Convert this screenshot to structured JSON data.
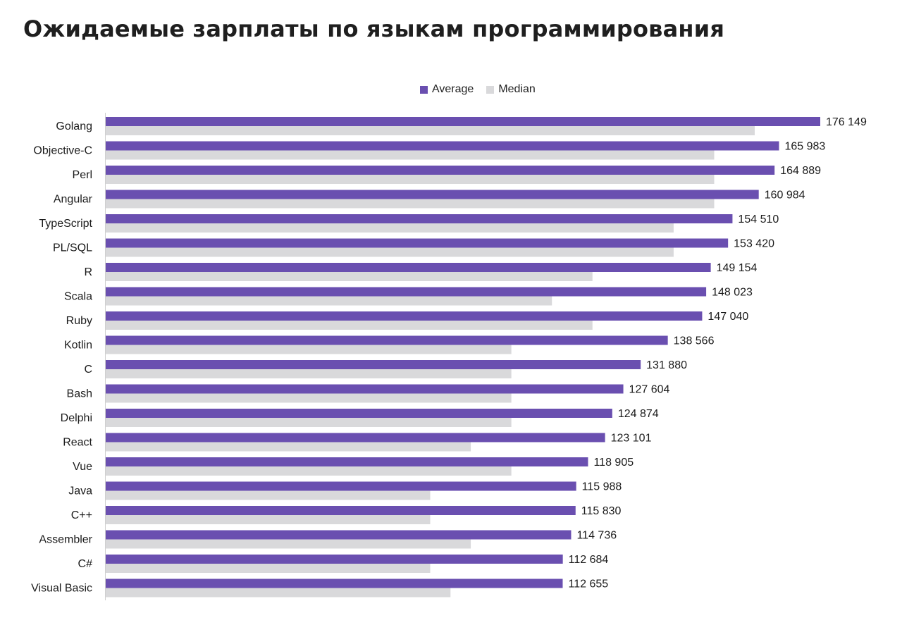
{
  "title": "Ожидаемые зарплаты по языкам программирования",
  "colors": {
    "average": "#6a4fb0",
    "median": "#d9d9db",
    "axis": "#cfcfcf"
  },
  "chart_data": {
    "type": "bar",
    "orientation": "horizontal",
    "title": "Ожидаемые зарплаты по языкам программирования",
    "xlabel": "",
    "ylabel": "",
    "legend_position": "top-center",
    "grid": false,
    "xlim": [
      0,
      180000
    ],
    "categories": [
      "Golang",
      "Objective-C",
      "Perl",
      "Angular",
      "TypeScript",
      "PL/SQL",
      "R",
      "Scala",
      "Ruby",
      "Kotlin",
      "C",
      "Bash",
      "Delphi",
      "React",
      "Vue",
      "Java",
      "C++",
      "Assembler",
      "C#",
      "Visual Basic"
    ],
    "series": [
      {
        "name": "Average",
        "values": [
          176149,
          165983,
          164889,
          160984,
          154510,
          153420,
          149154,
          148023,
          147040,
          138566,
          131880,
          127604,
          124874,
          123101,
          118905,
          115988,
          115830,
          114736,
          112684,
          112655
        ],
        "labels": [
          "176 149",
          "165 983",
          "164 889",
          "160 984",
          "154 510",
          "153 420",
          "149 154",
          "148 023",
          "147 040",
          "138 566",
          "131 880",
          "127 604",
          "124 874",
          "123 101",
          "118 905",
          "115 988",
          "115 830",
          "114 736",
          "112 684",
          "112 655"
        ]
      },
      {
        "name": "Median",
        "values": [
          160000,
          150000,
          150000,
          150000,
          140000,
          140000,
          120000,
          110000,
          120000,
          100000,
          100000,
          100000,
          100000,
          90000,
          100000,
          80000,
          80000,
          90000,
          80000,
          85000
        ]
      }
    ]
  }
}
